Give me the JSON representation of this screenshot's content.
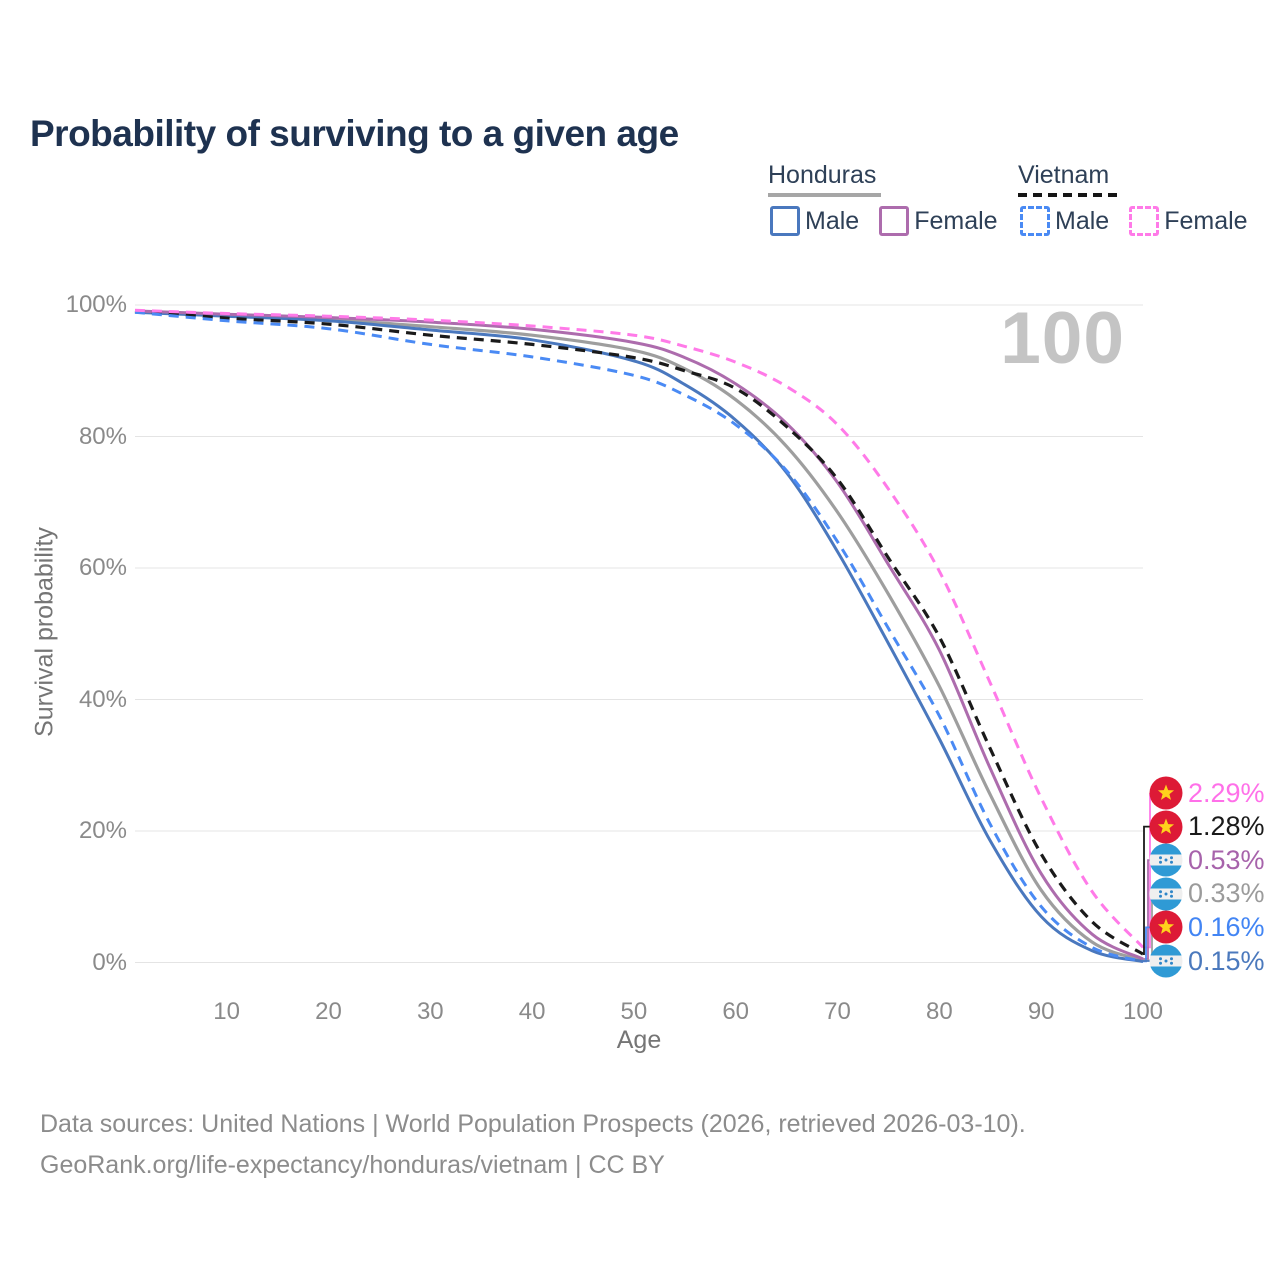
{
  "title": "Probability of surviving to a given age",
  "watermark": "100",
  "colors": {
    "title": "#1e3250",
    "watermark": "#c4c4c4",
    "gridline": "#e4e4e4",
    "honduras_male": "#4a78be",
    "honduras_female": "#ad6cad",
    "honduras_both": "#9e9e9e",
    "vietnam_male": "#4a8af4",
    "vietnam_female": "#ff7ae8",
    "vietnam_both": "#1a1a1a"
  },
  "legend": {
    "honduras": {
      "label": "Honduras",
      "male_label": "Male",
      "female_label": "Female"
    },
    "vietnam": {
      "label": "Vietnam",
      "male_label": "Male",
      "female_label": "Female"
    }
  },
  "chart_data": {
    "type": "line",
    "title": "Probability of surviving to a given age",
    "xlabel": "Age",
    "ylabel": "Survival probability",
    "xlim": [
      1,
      100
    ],
    "ylim": [
      0,
      100
    ],
    "grid": "horizontal-only",
    "legend_position": "top-right",
    "x_ticks": [
      10,
      20,
      30,
      40,
      50,
      60,
      70,
      80,
      90,
      100
    ],
    "y_tick_values": [
      100,
      80,
      60,
      40,
      20,
      0
    ],
    "y_tick_labels": [
      "100%",
      "80%",
      "60%",
      "40%",
      "20%",
      "0%"
    ],
    "x": [
      1,
      10,
      20,
      30,
      40,
      50,
      55,
      60,
      65,
      70,
      75,
      80,
      85,
      90,
      95,
      100
    ],
    "series": [
      {
        "id": "vietnam-female",
        "name": "Vietnam Female",
        "color": "#ff7ae8",
        "dashed": true,
        "width": 3,
        "end_label": "2.29%",
        "label_color": "#ff70e9",
        "flag": "vietnam",
        "values": [
          99.2,
          98.7,
          98.3,
          97.7,
          96.8,
          95.4,
          93.7,
          91.3,
          87.6,
          81.8,
          72.0,
          59.5,
          42.5,
          25.0,
          10.8,
          2.29
        ]
      },
      {
        "id": "vietnam-both",
        "name": "Vietnam",
        "color": "#1a1a1a",
        "dashed": true,
        "width": 3.2,
        "end_label": "1.28%",
        "label_color": "#1a1a1a",
        "flag": "vietnam",
        "values": [
          99.1,
          98.0,
          97.1,
          95.4,
          94.0,
          92.0,
          90.0,
          87.3,
          81.5,
          73.5,
          61.5,
          49.5,
          32.5,
          16.5,
          6.2,
          1.28
        ]
      },
      {
        "id": "honduras-female",
        "name": "Honduras Female",
        "color": "#ad6cad",
        "dashed": false,
        "width": 3,
        "end_label": "0.53%",
        "label_color": "#a763ab",
        "flag": "honduras",
        "values": [
          99.1,
          98.6,
          98.1,
          97.4,
          96.3,
          94.3,
          92.0,
          88.0,
          82.0,
          73.0,
          60.5,
          47.5,
          29.5,
          13.5,
          4.3,
          0.53
        ]
      },
      {
        "id": "honduras-both",
        "name": "Honduras",
        "color": "#9e9e9e",
        "dashed": false,
        "width": 3.2,
        "end_label": "0.33%",
        "label_color": "#9b9b9b",
        "flag": "honduras",
        "values": [
          99.0,
          98.5,
          97.8,
          96.7,
          95.4,
          93.1,
          90.3,
          85.6,
          78.5,
          68.5,
          56.0,
          42.0,
          25.5,
          11.0,
          3.1,
          0.33
        ]
      },
      {
        "id": "vietnam-male",
        "name": "Vietnam Male",
        "color": "#4a8af4",
        "dashed": true,
        "width": 3,
        "end_label": "0.16%",
        "label_color": "#4285f4",
        "flag": "vietnam",
        "values": [
          98.9,
          97.6,
          96.4,
          94.0,
          92.1,
          89.3,
          86.3,
          81.8,
          74.8,
          64.0,
          50.8,
          37.5,
          21.0,
          8.5,
          2.3,
          0.16
        ]
      },
      {
        "id": "honduras-male",
        "name": "Honduras Male",
        "color": "#4a78be",
        "dashed": false,
        "width": 3,
        "end_label": "0.15%",
        "label_color": "#4b79bd",
        "flag": "honduras",
        "values": [
          98.9,
          98.3,
          97.6,
          96.2,
          94.7,
          91.5,
          87.9,
          82.5,
          74.5,
          62.5,
          48.5,
          34.0,
          18.5,
          7.0,
          1.8,
          0.15
        ]
      }
    ]
  },
  "footer": {
    "line1": "Data sources: United Nations | World Population Prospects (2026, retrieved 2026-03-10).",
    "line2": "GeoRank.org/life-expectancy/honduras/vietnam | CC BY"
  }
}
